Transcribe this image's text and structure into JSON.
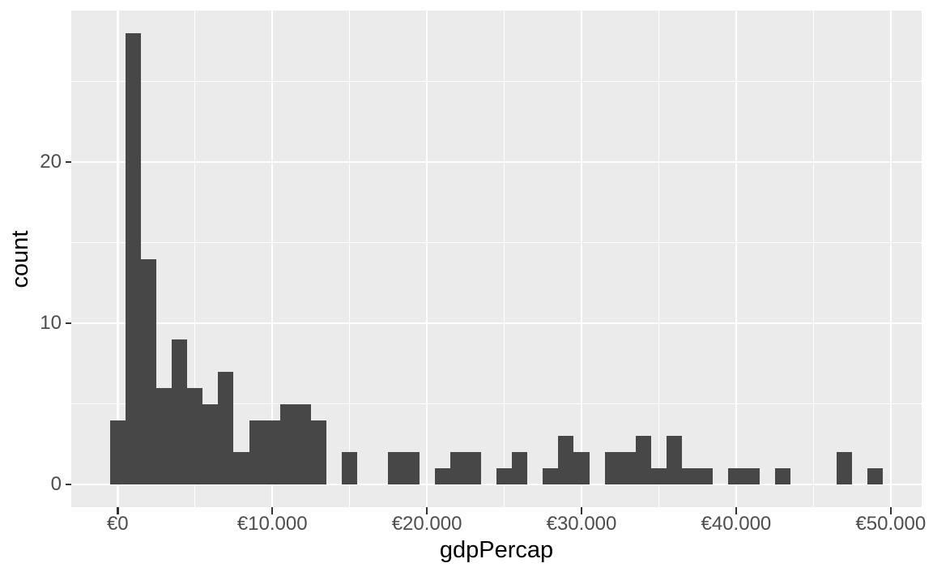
{
  "chart_data": {
    "type": "bar",
    "variant": "histogram",
    "title": "",
    "xlabel": "gdpPercap",
    "ylabel": "count",
    "bin_width": 1000,
    "bin_centers": [
      0,
      1000,
      2000,
      3000,
      4000,
      5000,
      6000,
      7000,
      8000,
      9000,
      10000,
      11000,
      12000,
      13000,
      14000,
      15000,
      16000,
      17000,
      18000,
      19000,
      20000,
      21000,
      22000,
      23000,
      24000,
      25000,
      26000,
      27000,
      28000,
      29000,
      30000,
      31000,
      32000,
      33000,
      34000,
      35000,
      36000,
      37000,
      38000,
      39000,
      40000,
      41000,
      42000,
      43000,
      44000,
      45000,
      46000,
      47000,
      48000,
      49000
    ],
    "counts": [
      4,
      28,
      14,
      6,
      9,
      6,
      5,
      7,
      2,
      4,
      4,
      5,
      5,
      4,
      0,
      2,
      0,
      0,
      2,
      2,
      0,
      1,
      2,
      2,
      0,
      1,
      2,
      0,
      1,
      3,
      2,
      0,
      2,
      2,
      3,
      1,
      3,
      1,
      1,
      0,
      1,
      1,
      0,
      1,
      0,
      0,
      0,
      2,
      0,
      1
    ],
    "total_count": 142,
    "x_domain": [
      -3000,
      52000
    ],
    "y_domain": [
      -1.4,
      29.4
    ],
    "x_ticks": [
      {
        "value": 0,
        "label": "€0"
      },
      {
        "value": 10000,
        "label": "€10.000"
      },
      {
        "value": 20000,
        "label": "€20.000"
      },
      {
        "value": 30000,
        "label": "€30.000"
      },
      {
        "value": 40000,
        "label": "€40.000"
      },
      {
        "value": 50000,
        "label": "€50.000"
      }
    ],
    "y_ticks": [
      {
        "value": 0,
        "label": "0"
      },
      {
        "value": 10,
        "label": "10"
      },
      {
        "value": 20,
        "label": "20"
      }
    ],
    "x_minor_gridlines": [
      5000,
      15000,
      25000,
      35000,
      45000
    ],
    "y_minor_gridlines": [
      5,
      15,
      25
    ],
    "grid": "major-and-minor",
    "legend_position": "none",
    "colors": {
      "bar_fill": "#474747",
      "panel_background": "#EBEBEB",
      "gridline": "#FFFFFF",
      "axis_text": "#4D4D4D",
      "axis_title": "#000000",
      "tick_mark": "#333333",
      "figure_background": "#FFFFFF"
    }
  }
}
